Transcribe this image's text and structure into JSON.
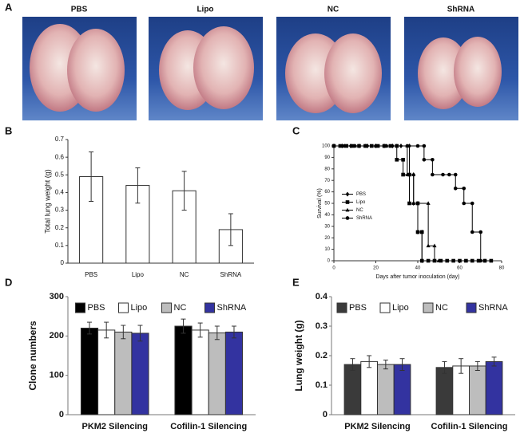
{
  "photos": {
    "label": "A",
    "titles": [
      "PBS",
      "Lipo",
      "NC",
      "ShRNA"
    ]
  },
  "chart_data": [
    {
      "type": "bar",
      "label": "B",
      "ylabel": "Total lung weight (g)",
      "categories": [
        "PBS",
        "Lipo",
        "NC",
        "ShRNA"
      ],
      "values": [
        0.49,
        0.44,
        0.41,
        0.19
      ],
      "errors": [
        0.14,
        0.1,
        0.11,
        0.09
      ],
      "color": "#ffffff",
      "edgecolor": "#333333",
      "ylim": [
        0,
        0.7
      ],
      "yticks": [
        0,
        0.1,
        0.2,
        0.3,
        0.4,
        0.5,
        0.6,
        0.7
      ]
    },
    {
      "type": "line",
      "step": true,
      "label": "C",
      "xlabel": "Days after tumor inoculation (day)",
      "ylabel": "Survival (%)",
      "xlim": [
        0,
        80
      ],
      "xticks": [
        0,
        20,
        40,
        60,
        80
      ],
      "ylim": [
        0,
        100
      ],
      "yticks": [
        0,
        10,
        20,
        30,
        40,
        50,
        60,
        70,
        80,
        90,
        100
      ],
      "legend": "center left",
      "series": [
        {
          "name": "PBS",
          "color": "#000000",
          "marker": "diamond",
          "x": [
            0,
            4,
            8,
            12,
            16,
            20,
            24,
            28,
            32,
            36,
            36,
            38,
            38,
            40,
            40,
            42,
            42
          ],
          "values": [
            100,
            100,
            100,
            100,
            100,
            100,
            100,
            100,
            100,
            100,
            75,
            75,
            50,
            50,
            25,
            25,
            0
          ]
        },
        {
          "name": "Lipo",
          "color": "#000000",
          "marker": "square",
          "x": [
            0,
            3,
            6,
            9,
            12,
            15,
            18,
            21,
            24,
            27,
            30,
            30,
            33,
            33,
            36,
            36,
            40,
            40,
            42,
            42,
            45,
            48,
            51,
            54,
            57,
            60,
            63,
            66,
            69,
            72,
            75
          ],
          "values": [
            100,
            100,
            100,
            100,
            100,
            100,
            100,
            100,
            100,
            100,
            100,
            88,
            88,
            75,
            75,
            50,
            50,
            25,
            25,
            0,
            0,
            0,
            0,
            0,
            0,
            0,
            0,
            0,
            0,
            0,
            0
          ]
        },
        {
          "name": "NC",
          "color": "#000000",
          "marker": "triangle",
          "x": [
            0,
            5,
            10,
            15,
            20,
            25,
            30,
            35,
            35,
            38,
            38,
            45,
            45,
            48,
            48,
            50
          ],
          "values": [
            100,
            100,
            100,
            100,
            100,
            100,
            100,
            100,
            75,
            75,
            50,
            50,
            13,
            13,
            0,
            0
          ]
        },
        {
          "name": "ShRNA",
          "color": "#000000",
          "marker": "circle",
          "x": [
            0,
            5,
            10,
            15,
            20,
            25,
            30,
            35,
            40,
            43,
            43,
            47,
            47,
            52,
            55,
            58,
            58,
            62,
            62,
            66,
            66,
            70,
            70,
            72
          ],
          "values": [
            100,
            100,
            100,
            100,
            100,
            100,
            100,
            100,
            100,
            100,
            88,
            88,
            75,
            75,
            75,
            75,
            63,
            63,
            50,
            50,
            25,
            25,
            0,
            0
          ]
        }
      ]
    },
    {
      "type": "bar",
      "label": "D",
      "ylabel": "Clone numbers",
      "categories": [
        "PKM2 Silencing",
        "Cofilin-1 Silencing"
      ],
      "ylim": [
        0,
        300
      ],
      "yticks": [
        0,
        100,
        200,
        300
      ],
      "legend": "upper center",
      "series": [
        {
          "name": "PBS",
          "color": "#000000",
          "values": [
            220,
            225
          ],
          "errors": [
            15,
            18
          ]
        },
        {
          "name": "Lipo",
          "color": "#ffffff",
          "values": [
            215,
            215
          ],
          "errors": [
            20,
            18
          ]
        },
        {
          "name": "NC",
          "color": "#bdbdbd",
          "values": [
            210,
            208
          ],
          "errors": [
            17,
            17
          ]
        },
        {
          "name": "ShRNA",
          "color": "#3333a0",
          "values": [
            207,
            210
          ],
          "errors": [
            20,
            15
          ]
        }
      ]
    },
    {
      "type": "bar",
      "label": "E",
      "ylabel": "Lung weight (g)",
      "categories": [
        "PKM2 Silencing",
        "Cofilin-1 Silencing"
      ],
      "ylim": [
        0,
        0.4
      ],
      "yticks": [
        0,
        0.1,
        0.2,
        0.3,
        0.4
      ],
      "legend": "upper center",
      "series": [
        {
          "name": "PBS",
          "color": "#3a3a3a",
          "values": [
            0.17,
            0.16
          ],
          "errors": [
            0.02,
            0.02
          ]
        },
        {
          "name": "Lipo",
          "color": "#ffffff",
          "values": [
            0.18,
            0.165
          ],
          "errors": [
            0.02,
            0.025
          ]
        },
        {
          "name": "NC",
          "color": "#bdbdbd",
          "values": [
            0.17,
            0.165
          ],
          "errors": [
            0.015,
            0.015
          ]
        },
        {
          "name": "ShRNA",
          "color": "#3333a0",
          "values": [
            0.17,
            0.18
          ],
          "errors": [
            0.02,
            0.015
          ]
        }
      ]
    }
  ]
}
